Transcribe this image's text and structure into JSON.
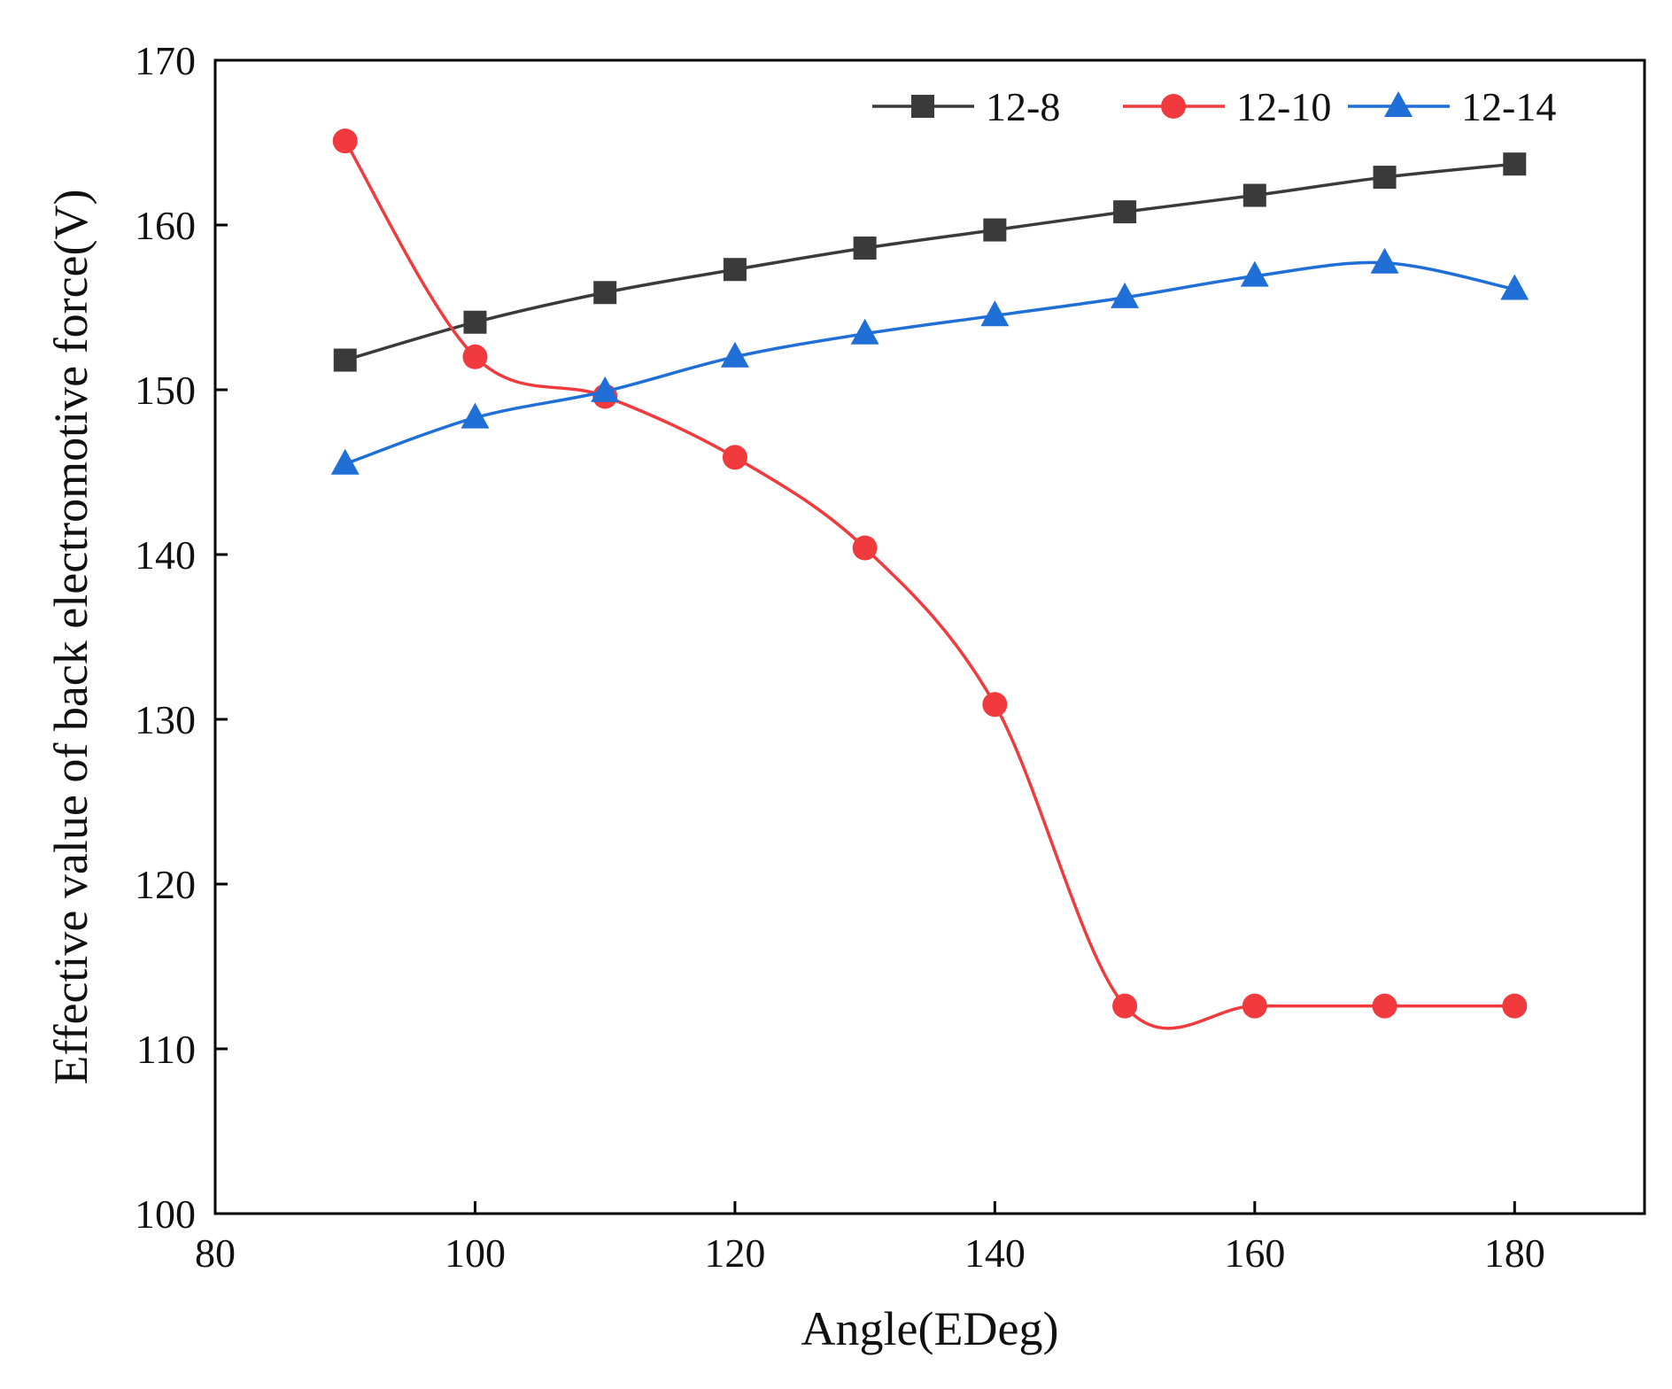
{
  "chart_data": {
    "type": "line",
    "title": "",
    "xlabel": "Angle(EDeg)",
    "ylabel": "Effective value of back electromotive force(V)",
    "xlim": [
      80,
      190
    ],
    "ylim": [
      100,
      170
    ],
    "xticks": [
      80,
      100,
      120,
      140,
      160,
      180
    ],
    "yticks": [
      100,
      110,
      120,
      130,
      140,
      150,
      160,
      170
    ],
    "grid": false,
    "legend_position": "top-right",
    "x": [
      90,
      100,
      110,
      120,
      130,
      140,
      150,
      160,
      170,
      180
    ],
    "series": [
      {
        "name": "12-8",
        "color": "#3a3a3a",
        "marker": "square",
        "values": [
          151.8,
          154.1,
          155.9,
          157.3,
          158.6,
          159.7,
          160.8,
          161.8,
          162.9,
          163.7
        ]
      },
      {
        "name": "12-10",
        "color": "#f03a3e",
        "marker": "circle",
        "values": [
          165.1,
          152.0,
          149.6,
          145.9,
          140.4,
          130.9,
          112.6,
          112.6,
          112.6,
          112.6
        ]
      },
      {
        "name": "12-14",
        "color": "#1f6fd6",
        "marker": "triangle",
        "values": [
          145.5,
          148.3,
          149.9,
          152.0,
          153.4,
          154.5,
          155.6,
          156.9,
          157.7,
          156.1
        ]
      }
    ]
  }
}
